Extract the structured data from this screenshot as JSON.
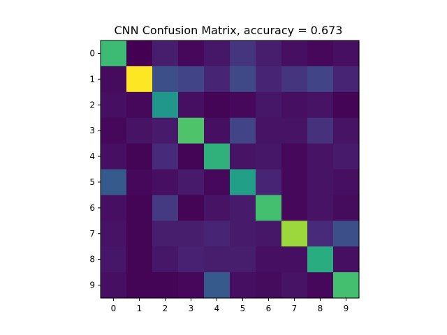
{
  "chart_data": {
    "type": "heatmap",
    "title": "CNN Confusion Matrix, accuracy = 0.673",
    "x_tick_labels": [
      "0",
      "1",
      "2",
      "3",
      "4",
      "5",
      "6",
      "7",
      "8",
      "9"
    ],
    "y_tick_labels": [
      "0",
      "1",
      "2",
      "3",
      "4",
      "5",
      "6",
      "7",
      "8",
      "9"
    ],
    "xlabel": "",
    "ylabel": "",
    "colormap": "viridis",
    "value_range": [
      0,
      1
    ],
    "matrix": [
      [
        0.68,
        0.0,
        0.08,
        0.02,
        0.06,
        0.15,
        0.08,
        0.04,
        0.02,
        0.04
      ],
      [
        0.03,
        1.0,
        0.24,
        0.2,
        0.1,
        0.22,
        0.1,
        0.15,
        0.2,
        0.1
      ],
      [
        0.04,
        0.02,
        0.52,
        0.04,
        0.01,
        0.02,
        0.06,
        0.04,
        0.05,
        0.01
      ],
      [
        0.02,
        0.05,
        0.07,
        0.72,
        0.04,
        0.2,
        0.05,
        0.05,
        0.14,
        0.05
      ],
      [
        0.04,
        0.01,
        0.12,
        0.01,
        0.64,
        0.05,
        0.06,
        0.02,
        0.05,
        0.07
      ],
      [
        0.28,
        0.02,
        0.04,
        0.07,
        0.02,
        0.56,
        0.1,
        0.02,
        0.05,
        0.04
      ],
      [
        0.04,
        0.01,
        0.17,
        0.01,
        0.05,
        0.07,
        0.7,
        0.02,
        0.05,
        0.03
      ],
      [
        0.05,
        0.01,
        0.08,
        0.08,
        0.1,
        0.07,
        0.06,
        0.85,
        0.12,
        0.24
      ],
      [
        0.06,
        0.01,
        0.06,
        0.09,
        0.08,
        0.08,
        0.04,
        0.04,
        0.62,
        0.04
      ],
      [
        0.04,
        0.01,
        0.01,
        0.02,
        0.28,
        0.04,
        0.03,
        0.05,
        0.02,
        0.7
      ]
    ]
  }
}
